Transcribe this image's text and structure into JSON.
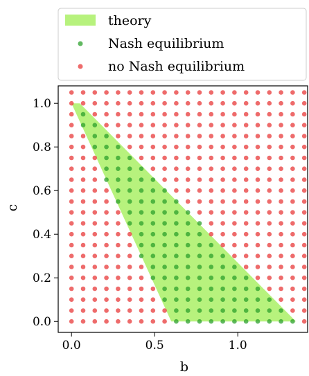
{
  "chart_data": {
    "type": "scatter",
    "title": "",
    "xlabel": "b",
    "ylabel": "c",
    "xlim": [
      -0.08,
      1.42
    ],
    "ylim": [
      -0.05,
      1.08
    ],
    "xticks": [
      0.0,
      0.5,
      1.0
    ],
    "xtick_labels": [
      "0.0",
      "0.5",
      "1.0"
    ],
    "yticks": [
      0.0,
      0.2,
      0.4,
      0.6,
      0.8,
      1.0
    ],
    "ytick_labels": [
      "0.0",
      "0.2",
      "0.4",
      "0.6",
      "0.8",
      "1.0"
    ],
    "grid": false,
    "legend": {
      "placement": "above",
      "entries": [
        "theory",
        "Nash equilibrium",
        "no Nash equilibrium"
      ]
    },
    "theory_region": {
      "name": "theory",
      "color": "#b7f27d",
      "polygon": [
        [
          0.0,
          1.0
        ],
        [
          0.6,
          0.0
        ],
        [
          1.35,
          0.0
        ],
        [
          0.05,
          1.0
        ]
      ]
    },
    "point_grid": {
      "b_values": [
        0.0,
        0.07,
        0.14,
        0.21,
        0.28,
        0.35,
        0.42,
        0.49,
        0.56,
        0.63,
        0.7,
        0.77,
        0.84,
        0.91,
        0.98,
        1.05,
        1.12,
        1.19,
        1.26,
        1.33,
        1.4
      ],
      "c_values": [
        0.0,
        0.05,
        0.1,
        0.15,
        0.2,
        0.25,
        0.3,
        0.35,
        0.4,
        0.45,
        0.5,
        0.55,
        0.6,
        0.65,
        0.7,
        0.75,
        0.8,
        0.85,
        0.9,
        0.95,
        1.0,
        1.05
      ]
    },
    "series": [
      {
        "name": "Nash equilibrium",
        "color": "#2ca02c",
        "rule": "inside theory region"
      },
      {
        "name": "no Nash equilibrium",
        "color": "#e83a3a",
        "rule": "outside theory region"
      }
    ]
  }
}
